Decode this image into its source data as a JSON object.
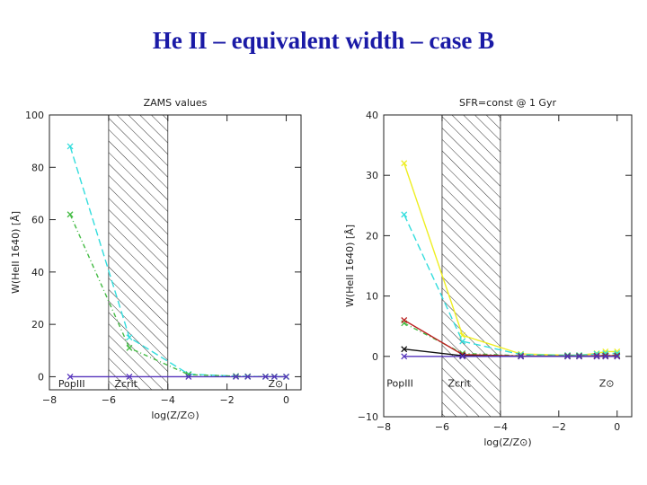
{
  "slide": {
    "title": "He II – equivalent width – case B"
  },
  "chart_data": [
    {
      "type": "line",
      "title": "ZAMS values",
      "xlabel": "log(Z/Z⊙)",
      "ylabel": "W(HeII 1640) [Å]",
      "xlim": [
        -8,
        0.5
      ],
      "ylim": [
        -5,
        100
      ],
      "xticks": [
        -8,
        -6,
        -4,
        -2,
        0
      ],
      "yticks": [
        0,
        20,
        40,
        60,
        80,
        100
      ],
      "xtick_labels": [
        "−8",
        "−6",
        "−4",
        "−2",
        "0"
      ],
      "ytick_labels": [
        "0",
        "20",
        "40",
        "60",
        "80",
        "100"
      ],
      "hatched_region": [
        -6,
        -4
      ],
      "annotations": [
        {
          "text": "PopIII",
          "x": -7.7,
          "y": -4
        },
        {
          "text": "Zcrit",
          "x": -5.8,
          "y": -4
        },
        {
          "text": "Z⊙",
          "x": -0.1,
          "y": -4
        }
      ],
      "series": [
        {
          "color": "#33dddd",
          "dash": "8,4",
          "x": [
            -7.3,
            -5.3,
            -3.3,
            -1.7,
            -1.3,
            -0.7,
            -0.4,
            0
          ],
          "y": [
            88,
            15,
            1,
            0.2,
            0.1,
            0.05,
            0.05,
            0
          ]
        },
        {
          "color": "#44bb44",
          "dash": "5,3,1,3",
          "x": [
            -7.3,
            -5.3,
            -3.3,
            -1.7,
            -1.3,
            -0.7,
            -0.4,
            0
          ],
          "y": [
            62,
            11,
            0.8,
            0.2,
            0.1,
            0.05,
            0.05,
            0
          ]
        },
        {
          "color": "#5533bb",
          "dash": "",
          "x": [
            -7.3,
            -5.3,
            -3.3,
            -1.7,
            -1.3,
            -0.7,
            -0.4,
            0
          ],
          "y": [
            0,
            0,
            0,
            0,
            0,
            0,
            0,
            0
          ]
        }
      ]
    },
    {
      "type": "line",
      "title": "SFR=const @ 1 Gyr",
      "xlabel": "log(Z/Z⊙)",
      "ylabel": "W(HeII 1640) [Å]",
      "xlim": [
        -8,
        0.5
      ],
      "ylim": [
        -10,
        40
      ],
      "xticks": [
        -8,
        -6,
        -4,
        -2,
        0
      ],
      "yticks": [
        -10,
        0,
        10,
        20,
        30,
        40
      ],
      "xtick_labels": [
        "−8",
        "−6",
        "−4",
        "−2",
        "0"
      ],
      "ytick_labels": [
        "−10",
        "0",
        "10",
        "20",
        "30",
        "40"
      ],
      "hatched_region": [
        -6,
        -4
      ],
      "annotations": [
        {
          "text": "PopIII",
          "x": -7.9,
          "y": -5
        },
        {
          "text": "Zcrit",
          "x": -5.8,
          "y": -5
        },
        {
          "text": "Z⊙",
          "x": -0.1,
          "y": -5
        }
      ],
      "series": [
        {
          "color": "#eeee22",
          "dash": "",
          "x": [
            -7.3,
            -5.3,
            -3.3,
            -1.7,
            -1.3,
            -0.7,
            -0.4,
            0
          ],
          "y": [
            32,
            3.5,
            0.4,
            0.2,
            0.2,
            0.5,
            0.8,
            0.8
          ]
        },
        {
          "color": "#33dddd",
          "dash": "8,4",
          "x": [
            -7.3,
            -5.3,
            -3.3,
            -1.7,
            -1.3,
            -0.7,
            -0.4,
            0
          ],
          "y": [
            23.5,
            2.5,
            0.3,
            0.2,
            0.2,
            0.4,
            0.5,
            0.5
          ]
        },
        {
          "color": "#44bb44",
          "dash": "5,3,1,3",
          "x": [
            -7.3,
            -5.3,
            -3.3,
            -1.7,
            -1.3,
            -0.7,
            -0.4,
            0
          ],
          "y": [
            5.5,
            0.5,
            0.1,
            0.1,
            0.1,
            0.1,
            0.2,
            0.2
          ]
        },
        {
          "color": "#bb2222",
          "dash": "",
          "x": [
            -7.3,
            -5.3,
            -3.3,
            -1.7,
            -1.3,
            -0.7,
            -0.4,
            0
          ],
          "y": [
            6,
            0.3,
            0.05,
            0.05,
            0.05,
            0.1,
            0.1,
            0.1
          ]
        },
        {
          "color": "#111111",
          "dash": "",
          "x": [
            -7.3,
            -5.3,
            -3.3,
            -1.7,
            -1.3,
            -0.7,
            -0.4,
            0
          ],
          "y": [
            1.2,
            0.1,
            0,
            0,
            0,
            0,
            0,
            0
          ]
        },
        {
          "color": "#5533bb",
          "dash": "",
          "x": [
            -7.3,
            -5.3,
            -3.3,
            -1.7,
            -1.3,
            -0.7,
            -0.4,
            0
          ],
          "y": [
            0,
            0,
            0,
            0,
            0,
            0,
            0,
            0
          ]
        }
      ]
    }
  ]
}
